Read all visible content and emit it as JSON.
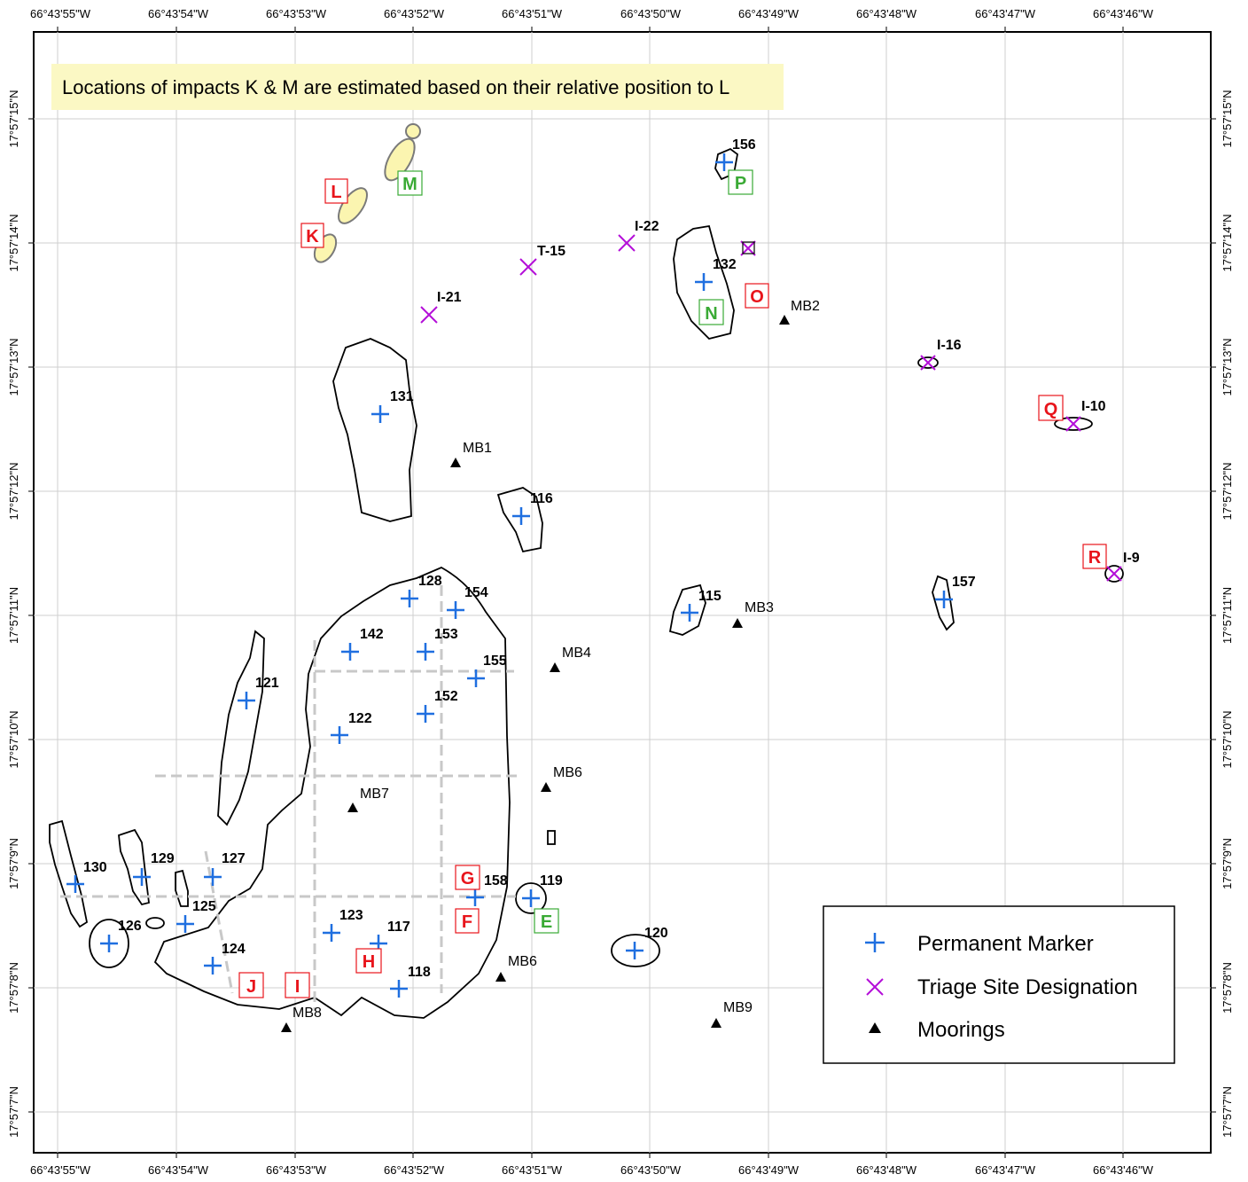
{
  "map": {
    "note": "Locations of impacts K & M are estimated based on their relative position to L",
    "colors": {
      "marker": "#1f6fe0",
      "triage": "#b40fd8",
      "mooring": "#000000",
      "impact_red": "#e8141b",
      "impact_green": "#3aaa35",
      "estimated_fill": "#fbf5b0",
      "note_bg": "#fbf8c4",
      "grid": "#cfcfcf",
      "dashed": "#c8c8c8"
    },
    "lon_ticks": [
      "66°43'55\"W",
      "66°43'54\"W",
      "66°43'53\"W",
      "66°43'52\"W",
      "66°43'51\"W",
      "66°43'50\"W",
      "66°43'49\"W",
      "66°43'48\"W",
      "66°43'47\"W",
      "66°43'46\"W"
    ],
    "lat_ticks": [
      "17°57'15\"N",
      "17°57'14\"N",
      "17°57'13\"N",
      "17°57'12\"N",
      "17°57'11\"N",
      "17°57'10\"N",
      "17°57'9\"N",
      "17°57'8\"N",
      "17°57'7\"N"
    ],
    "markers": [
      "156",
      "132",
      "131",
      "116",
      "115",
      "157",
      "128",
      "154",
      "142",
      "153",
      "155",
      "121",
      "152",
      "122",
      "130",
      "129",
      "127",
      "125",
      "126",
      "123",
      "117",
      "124",
      "118",
      "158",
      "119",
      "120"
    ],
    "triage_sites": [
      "I-22",
      "T-15",
      "I-21",
      "I-16",
      "I-10",
      "I-9"
    ],
    "moorings": [
      "MB1",
      "MB2",
      "MB3",
      "MB4",
      "MB6",
      "MB7",
      "MB6",
      "MB8",
      "MB9"
    ],
    "impacts_red": [
      "L",
      "K",
      "O",
      "Q",
      "R",
      "G",
      "F",
      "H",
      "J",
      "I"
    ],
    "impacts_green": [
      "M",
      "P",
      "N",
      "E"
    ],
    "legend": {
      "marker": "Permanent Marker",
      "triage": "Triage Site Designation",
      "mooring": "Moorings"
    }
  }
}
